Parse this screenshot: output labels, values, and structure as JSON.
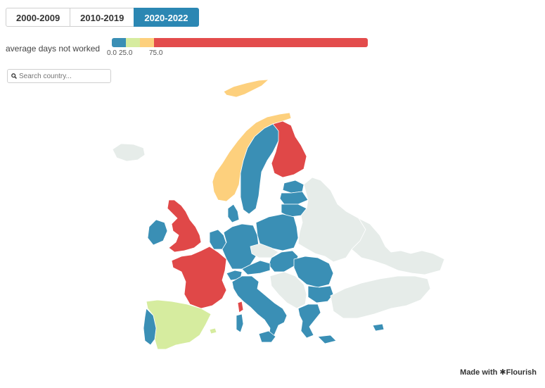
{
  "tabs": [
    {
      "label": "2000-2009",
      "active": false
    },
    {
      "label": "2010-2019",
      "active": false
    },
    {
      "label": "2020-2022",
      "active": true
    }
  ],
  "legend": {
    "label": "average days not worked",
    "ticks": [
      "0.0",
      "25.0",
      "75.0"
    ],
    "segments": [
      {
        "color": "#3a8fb5",
        "fraction": 0.055
      },
      {
        "color": "#d6ec9f",
        "fraction": 0.055
      },
      {
        "color": "#fdd07d",
        "fraction": 0.055
      },
      {
        "color": "#e34c4c",
        "fraction": 0.835
      }
    ]
  },
  "search": {
    "placeholder": "Search country..."
  },
  "colors": {
    "blue": "#3a8fb5",
    "red": "#e04848",
    "yellow": "#fdd07d",
    "green": "#d6ec9f",
    "nodata": "#e6ece9"
  },
  "map_legend_classes": {
    "blue": "lowest class",
    "green": "second class",
    "yellow": "third class",
    "red": "highest class",
    "nodata": "no data"
  },
  "credit": {
    "text": "Made with ✱Flourish"
  }
}
